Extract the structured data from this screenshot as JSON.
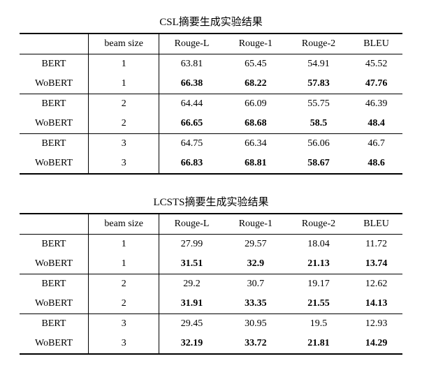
{
  "tables": [
    {
      "title": "CSL摘要生成实验结果",
      "columns": [
        "",
        "beam size",
        "Rouge-L",
        "Rouge-1",
        "Rouge-2",
        "BLEU"
      ],
      "rows": [
        {
          "model": "BERT",
          "beam": "1",
          "rl": "63.81",
          "r1": "65.45",
          "r2": "54.91",
          "bleu": "45.52",
          "bold": false
        },
        {
          "model": "WoBERT",
          "beam": "1",
          "rl": "66.38",
          "r1": "68.22",
          "r2": "57.83",
          "bleu": "47.76",
          "bold": true
        },
        {
          "model": "BERT",
          "beam": "2",
          "rl": "64.44",
          "r1": "66.09",
          "r2": "55.75",
          "bleu": "46.39",
          "bold": false
        },
        {
          "model": "WoBERT",
          "beam": "2",
          "rl": "66.65",
          "r1": "68.68",
          "r2": "58.5",
          "bleu": "48.4",
          "bold": true
        },
        {
          "model": "BERT",
          "beam": "3",
          "rl": "64.75",
          "r1": "66.34",
          "r2": "56.06",
          "bleu": "46.7",
          "bold": false
        },
        {
          "model": "WoBERT",
          "beam": "3",
          "rl": "66.83",
          "r1": "68.81",
          "r2": "58.67",
          "bleu": "48.6",
          "bold": true
        }
      ]
    },
    {
      "title": "LCSTS摘要生成实验结果",
      "columns": [
        "",
        "beam size",
        "Rouge-L",
        "Rouge-1",
        "Rouge-2",
        "BLEU"
      ],
      "rows": [
        {
          "model": "BERT",
          "beam": "1",
          "rl": "27.99",
          "r1": "29.57",
          "r2": "18.04",
          "bleu": "11.72",
          "bold": false
        },
        {
          "model": "WoBERT",
          "beam": "1",
          "rl": "31.51",
          "r1": "32.9",
          "r2": "21.13",
          "bleu": "13.74",
          "bold": true
        },
        {
          "model": "BERT",
          "beam": "2",
          "rl": "29.2",
          "r1": "30.7",
          "r2": "19.17",
          "bleu": "12.62",
          "bold": false
        },
        {
          "model": "WoBERT",
          "beam": "2",
          "rl": "31.91",
          "r1": "33.35",
          "r2": "21.55",
          "bleu": "14.13",
          "bold": true
        },
        {
          "model": "BERT",
          "beam": "3",
          "rl": "29.45",
          "r1": "30.95",
          "r2": "19.5",
          "bleu": "12.93",
          "bold": false
        },
        {
          "model": "WoBERT",
          "beam": "3",
          "rl": "32.19",
          "r1": "33.72",
          "r2": "21.81",
          "bleu": "14.29",
          "bold": true
        }
      ]
    }
  ]
}
